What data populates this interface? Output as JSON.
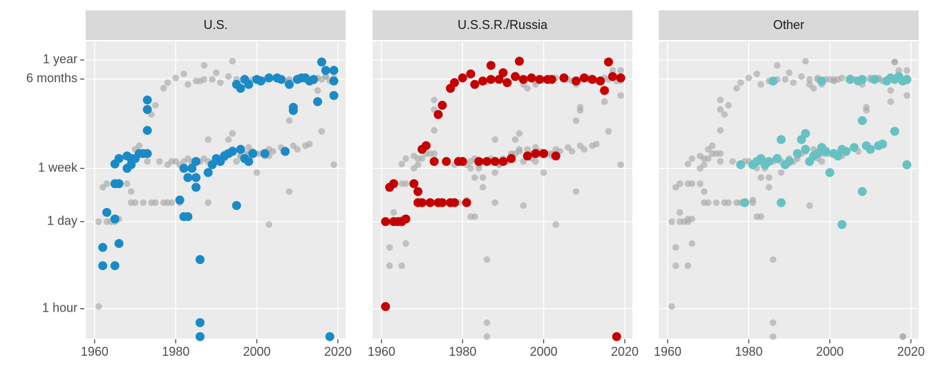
{
  "chart_data": [
    {
      "type": "scatter",
      "title": "U.S.",
      "color": "#1a8ac6",
      "background_color": "#a9a9a9",
      "log_y": true,
      "grid": true,
      "xlim": [
        1957.8,
        2021.9
      ],
      "xticks": [
        1960,
        1980,
        2000,
        2020
      ],
      "ylim": [
        0.014,
        720
      ],
      "yticks": [
        {
          "value": 0.04167,
          "label": "1 hour"
        },
        {
          "value": 1,
          "label": "1 day"
        },
        {
          "value": 7,
          "label": "1 week"
        },
        {
          "value": 182.5,
          "label": "6 months"
        },
        {
          "value": 365,
          "label": "1 year"
        }
      ],
      "x": [
        1962,
        1962,
        1963,
        1965,
        1965,
        1965,
        1965,
        1966,
        1966,
        1966,
        1968,
        1968,
        1969,
        1969,
        1970,
        1971,
        1972,
        1973,
        1973,
        1973,
        1973,
        1981,
        1982,
        1982,
        1983,
        1983,
        1984,
        1985,
        1985,
        1985,
        1986,
        1986,
        1986,
        1988,
        1989,
        1990,
        1991,
        1992,
        1993,
        1994,
        1995,
        1995,
        1996,
        1996,
        1997,
        1997,
        1998,
        1998,
        1999,
        2000,
        2001,
        2002,
        2003,
        2005,
        2006,
        2007,
        2008,
        2009,
        2009,
        2010,
        2011,
        2012,
        2013,
        2014,
        2015,
        2016,
        2017,
        2018,
        2019,
        2019,
        2019
      ],
      "y": [
        0.2,
        0.39,
        1.4,
        1.1,
        0.2,
        4,
        8.2,
        0.45,
        4,
        10,
        11,
        7,
        8,
        10,
        10,
        12,
        12,
        28,
        60,
        85,
        12,
        2.2,
        1.2,
        7,
        5,
        1.2,
        7,
        5,
        9,
        3.5,
        0.025,
        0.015,
        0.25,
        6,
        8,
        10,
        9,
        11,
        12,
        13,
        1.8,
        150,
        14,
        130,
        10,
        180,
        9,
        150,
        12,
        180,
        170,
        12,
        190,
        190,
        180,
        13,
        150,
        65,
        58,
        180,
        190,
        190,
        170,
        180,
        80,
        340,
        250,
        0.015,
        100,
        250,
        170
      ]
    },
    {
      "type": "scatter",
      "title": "U.S.S.R./Russia",
      "color": "#c40000",
      "background_color": "#a9a9a9",
      "log_y": true,
      "grid": true,
      "xlim": [
        1957.8,
        2021.9
      ],
      "xticks": [
        1960,
        1980,
        2000,
        2020
      ],
      "ylim": [
        0.014,
        720
      ],
      "yticks": [
        {
          "value": 0.04167,
          "label": "1 hour"
        },
        {
          "value": 1,
          "label": "1 day"
        },
        {
          "value": 7,
          "label": "1 week"
        },
        {
          "value": 182.5,
          "label": "6 months"
        },
        {
          "value": 365,
          "label": "1 year"
        }
      ],
      "x": [
        1961,
        1961,
        1962,
        1963,
        1963,
        1964,
        1965,
        1966,
        1968,
        1969,
        1969,
        1970,
        1970,
        1971,
        1972,
        1973,
        1974,
        1974,
        1975,
        1975,
        1976,
        1977,
        1977,
        1978,
        1978,
        1979,
        1980,
        1980,
        1981,
        1982,
        1983,
        1984,
        1985,
        1986,
        1987,
        1987,
        1988,
        1989,
        1990,
        1990,
        1991,
        1992,
        1993,
        1994,
        1995,
        1996,
        1997,
        1998,
        1999,
        2000,
        2001,
        2002,
        2003,
        2005,
        2008,
        2010,
        2012,
        2014,
        2015,
        2016,
        2017,
        2018,
        2019
      ],
      "y": [
        0.045,
        1,
        3.5,
        4,
        1,
        1,
        1,
        1.1,
        4,
        2,
        3,
        2,
        14,
        16,
        2,
        9,
        2,
        50,
        2,
        70,
        9,
        2,
        130,
        2,
        160,
        9,
        9,
        190,
        2,
        220,
        150,
        9,
        170,
        9,
        300,
        180,
        9,
        180,
        9,
        230,
        160,
        10,
        200,
        350,
        180,
        11,
        190,
        12,
        180,
        12,
        180,
        180,
        11,
        190,
        170,
        190,
        180,
        170,
        120,
        340,
        200,
        0.015,
        190
      ]
    },
    {
      "type": "scatter",
      "title": "Other",
      "color": "#66c2c2",
      "background_color": "#a9a9a9",
      "log_y": true,
      "grid": true,
      "xlim": [
        1957.8,
        2021.9
      ],
      "xticks": [
        1960,
        1980,
        2000,
        2020
      ],
      "ylim": [
        0.014,
        720
      ],
      "yticks": [
        {
          "value": 0.04167,
          "label": "1 hour"
        },
        {
          "value": 1,
          "label": "1 day"
        },
        {
          "value": 7,
          "label": "1 week"
        },
        {
          "value": 182.5,
          "label": "6 months"
        },
        {
          "value": 365,
          "label": "1 year"
        }
      ],
      "x": [
        1978,
        1979,
        1981,
        1982,
        1983,
        1984,
        1985,
        1986,
        1987,
        1988,
        1988,
        1989,
        1990,
        1992,
        1993,
        1994,
        1994,
        1995,
        1996,
        1997,
        1998,
        1998,
        1999,
        2000,
        2001,
        2002,
        2003,
        2003,
        2004,
        2005,
        2006,
        2007,
        2008,
        2008,
        2008,
        2009,
        2010,
        2011,
        2012,
        2013,
        2014,
        2015,
        2016,
        2016,
        2017,
        2018,
        2019,
        2019
      ],
      "y": [
        8,
        2,
        8,
        9,
        10,
        8,
        9,
        170,
        10,
        2,
        20,
        8,
        9,
        12,
        20,
        14,
        25,
        9,
        11,
        12,
        170,
        15,
        13,
        6,
        12,
        11,
        0.9,
        14,
        13,
        180,
        15,
        170,
        3,
        40,
        180,
        16,
        14,
        180,
        16,
        17,
        170,
        190,
        27,
        180,
        200,
        170,
        8,
        180
      ]
    }
  ]
}
